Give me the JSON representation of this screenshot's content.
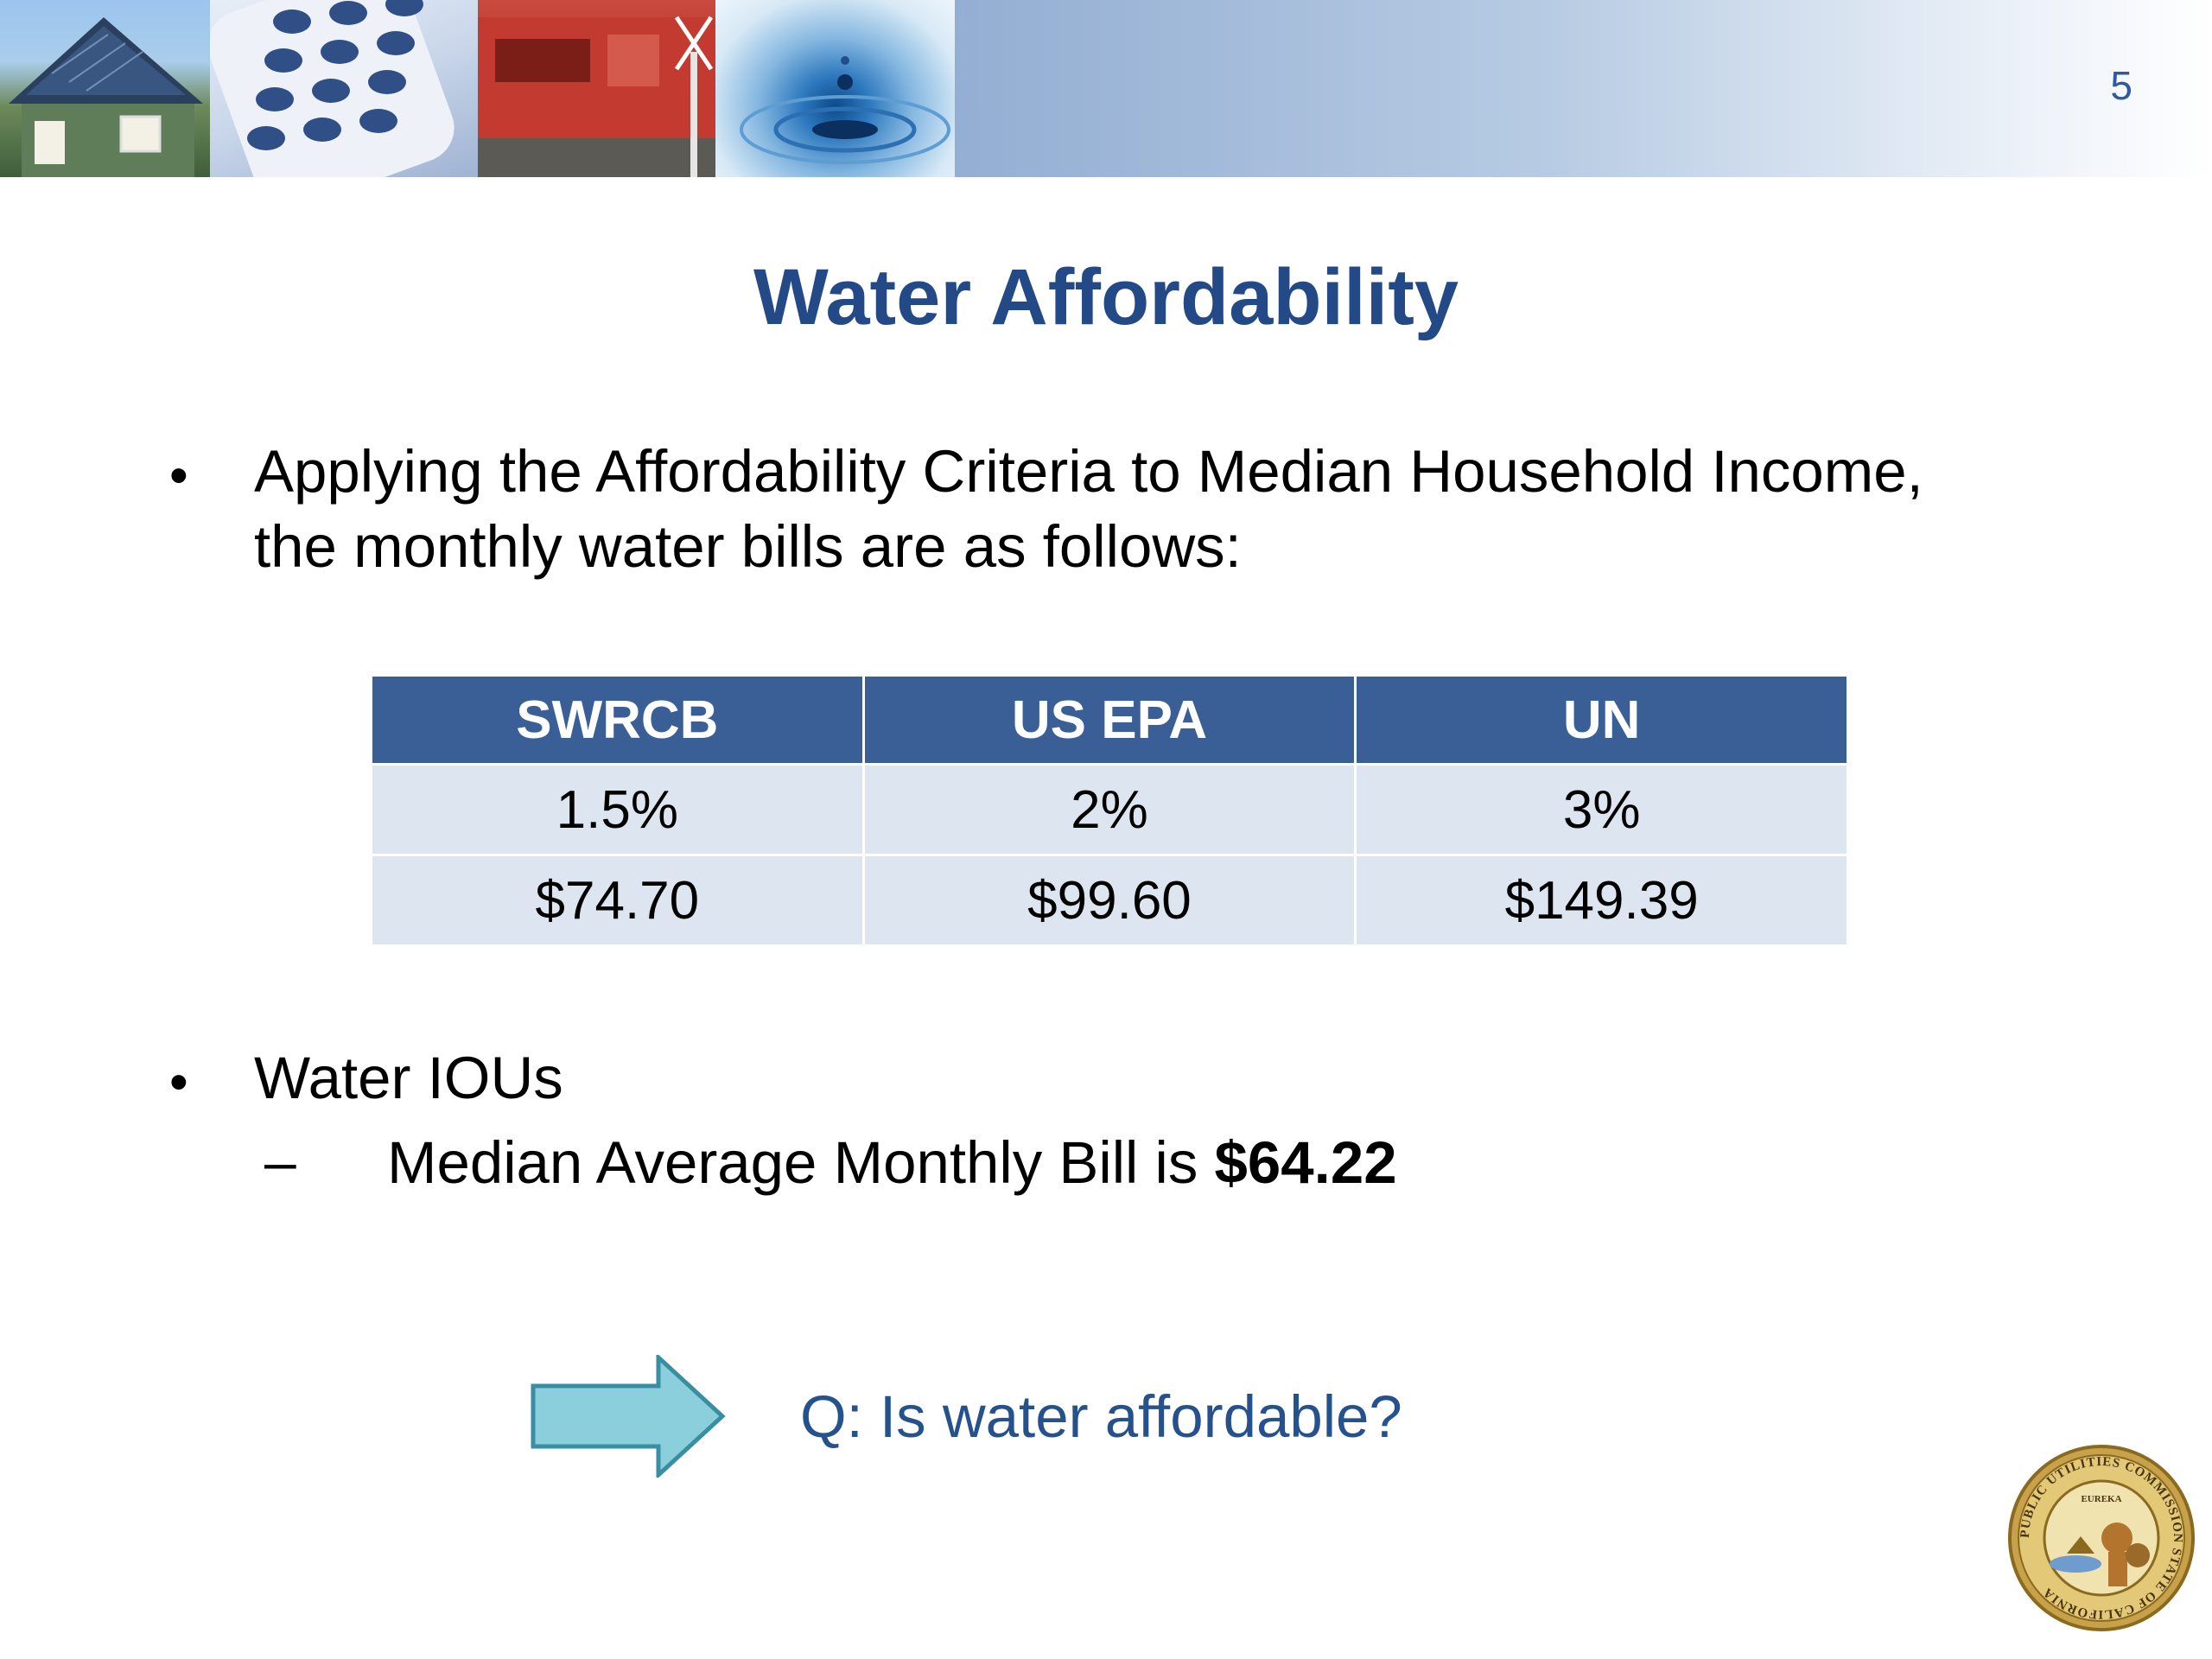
{
  "slide": {
    "page_number": "5",
    "title": "Water Affordability",
    "bullet1": {
      "line1": "Applying the Affordability Criteria to Median Household Income,",
      "line2": "the monthly water bills are as follows:"
    },
    "table": {
      "headers": [
        "SWRCB",
        "US EPA",
        "UN"
      ],
      "rows": [
        [
          "1.5%",
          "2%",
          "3%"
        ],
        [
          "$74.70",
          "$99.60",
          "$149.39"
        ]
      ]
    },
    "bullet2": {
      "text": "Water IOUs",
      "sub_dash": "–",
      "sub_prefix": "Median Average Monthly Bill is ",
      "sub_value": "$64.22"
    },
    "question": "Q: Is water affordable?",
    "seal": {
      "ring_text": "PUBLIC UTILITIES COMMISSION STATE OF CALIFORNIA",
      "motto": "EUREKA"
    }
  },
  "colors": {
    "title": "#234a86",
    "table_header": "#3a5f96",
    "table_cell": "#dde6f0",
    "question": "#25528c",
    "arrow_fill": "#8ccfdc",
    "arrow_stroke": "#3a8ea3"
  },
  "icons": [
    "solar-house-photo",
    "phone-keypad-photo",
    "train-photo",
    "water-drop-photo",
    "right-arrow-icon",
    "cpuc-seal-icon"
  ]
}
